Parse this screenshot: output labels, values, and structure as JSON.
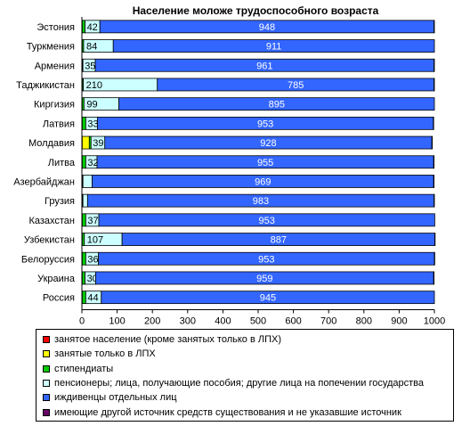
{
  "chart_data": {
    "type": "bar",
    "orientation": "horizontal",
    "stacked": true,
    "title": "Население моложе трудоспособного возраста",
    "xlabel": "",
    "ylabel": "",
    "xlim": [
      0,
      1000
    ],
    "xticks": [
      0,
      100,
      200,
      300,
      400,
      500,
      600,
      700,
      800,
      900,
      1000
    ],
    "grid": false,
    "legend_position": "bottom",
    "categories": [
      "Эстония",
      "Туркмения",
      "Армения",
      "Таджикистан",
      "Киргизия",
      "Латвия",
      "Молдавия",
      "Литва",
      "Азербайджан",
      "Грузия",
      "Казахстан",
      "Узбекистан",
      "Белоруссия",
      "Украина",
      "Россия"
    ],
    "series": [
      {
        "name": "занятое население (кроме занятых только в ЛПХ)",
        "color": "#ff0000",
        "values": [
          1,
          1,
          1,
          1,
          1,
          1,
          1,
          1,
          1,
          1,
          1,
          1,
          1,
          1,
          1
        ],
        "labels": [
          "",
          "",
          "",
          "",
          "",
          "",
          "",
          "",
          "",
          "",
          "",
          "",
          "",
          "",
          ""
        ]
      },
      {
        "name": "занятые только в ЛПХ",
        "color": "#ffff00",
        "values": [
          0,
          0,
          0,
          0,
          0,
          0,
          20,
          0,
          0,
          0,
          0,
          0,
          0,
          0,
          0
        ],
        "labels": [
          "",
          "",
          "",
          "",
          "",
          "",
          "",
          "",
          "",
          "",
          "",
          "",
          "",
          "",
          ""
        ]
      },
      {
        "name": "стипендиаты",
        "color": "#00cc00",
        "values": [
          8,
          4,
          2,
          3,
          5,
          10,
          5,
          10,
          2,
          2,
          10,
          6,
          10,
          8,
          10
        ],
        "labels": [
          "",
          "",
          "",
          "",
          "",
          "",
          "",
          "",
          "",
          "",
          "",
          "",
          "",
          "",
          ""
        ]
      },
      {
        "name": "пенсионеры; лица, получающие пособия; другие лица на попечении государства",
        "color": "#ccffff",
        "values": [
          42,
          84,
          35,
          210,
          99,
          33,
          39,
          32,
          26,
          13,
          37,
          107,
          36,
          30,
          44
        ],
        "labels": [
          "42",
          "84",
          "35",
          "210",
          "99",
          "33",
          "39",
          "32",
          "",
          "",
          "37",
          "107",
          "36",
          "30",
          "44"
        ]
      },
      {
        "name": "иждивенцы отдельных лиц",
        "color": "#3366ff",
        "values": [
          948,
          911,
          961,
          785,
          895,
          953,
          928,
          955,
          969,
          983,
          953,
          887,
          953,
          959,
          945
        ],
        "labels": [
          "948",
          "911",
          "961",
          "785",
          "895",
          "953",
          "928",
          "955",
          "969",
          "983",
          "953",
          "887",
          "953",
          "959",
          "945"
        ]
      },
      {
        "name": "имеющие другой источник средств существования и не указавшие источник",
        "color": "#660066",
        "values": [
          1,
          0,
          1,
          1,
          0,
          1,
          1,
          1,
          1,
          1,
          0,
          1,
          1,
          1,
          0
        ],
        "labels": [
          "",
          "",
          "",
          "",
          "",
          "",
          "",
          "",
          "",
          "",
          "",
          "",
          "",
          "",
          ""
        ]
      }
    ]
  }
}
